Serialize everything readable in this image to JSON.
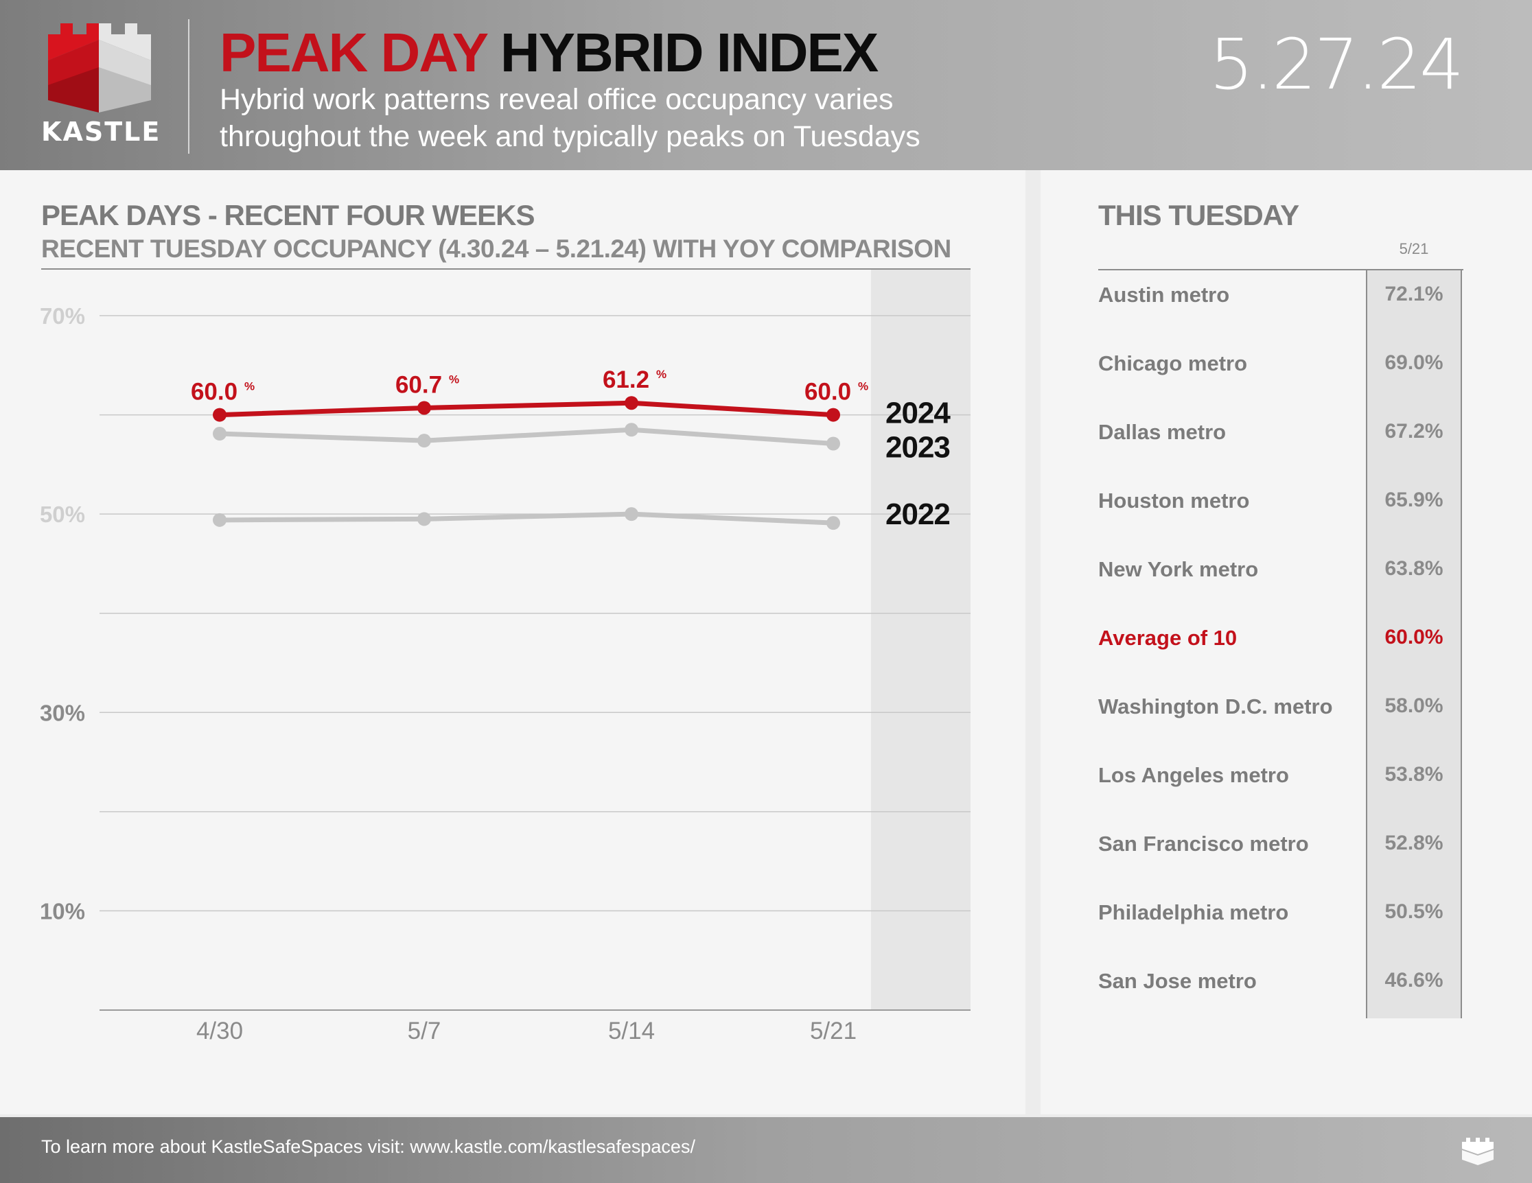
{
  "header": {
    "logo_text": "KASTLE",
    "title_red": "PEAK DAY",
    "title_black": "HYBRID INDEX",
    "subtitle_line1": "Hybrid work patterns reveal office occupancy varies",
    "subtitle_line2": "throughout the week and typically peaks on Tuesdays",
    "date": "5.27.24"
  },
  "left": {
    "title": "PEAK DAYS - RECENT FOUR WEEKS",
    "subtitle": "RECENT TUESDAY OCCUPANCY (4.30.24 – 5.21.24) WITH YOY COMPARISON"
  },
  "chart_data": {
    "type": "line",
    "title": "PEAK DAYS - RECENT FOUR WEEKS",
    "subtitle": "RECENT TUESDAY OCCUPANCY (4.30.24 – 5.21.24) WITH YOY COMPARISON",
    "categories": [
      "4/30",
      "5/7",
      "5/14",
      "5/21"
    ],
    "y_ticks": [
      {
        "value": 70,
        "label": "70%",
        "faded": true
      },
      {
        "value": 50,
        "label": "50%",
        "faded": true
      },
      {
        "value": 30,
        "label": "30%",
        "faded": false
      },
      {
        "value": 10,
        "label": "10%",
        "faded": false
      }
    ],
    "gridlines": [
      70,
      60,
      50,
      40,
      30,
      20,
      10,
      0
    ],
    "ylim": [
      0,
      70
    ],
    "series": [
      {
        "name": "2024",
        "values": [
          60.0,
          60.7,
          61.2,
          60.0
        ],
        "labels": [
          "60.0",
          "60.7",
          "61.2",
          "60.0"
        ],
        "color": "#c3111b"
      },
      {
        "name": "2023",
        "values": [
          58.1,
          57.4,
          58.5,
          57.1
        ],
        "color": "#c4c4c4"
      },
      {
        "name": "2022",
        "values": [
          49.4,
          49.5,
          50.0,
          49.1
        ],
        "color": "#c4c4c4"
      }
    ],
    "value_suffix": "%",
    "highlight_band": "last week"
  },
  "table": {
    "title": "THIS TUESDAY",
    "column_header": "5/21",
    "rows": [
      {
        "metro": "Austin metro",
        "value": "72.1%"
      },
      {
        "metro": "Chicago metro",
        "value": "69.0%"
      },
      {
        "metro": "Dallas metro",
        "value": "67.2%"
      },
      {
        "metro": "Houston metro",
        "value": "65.9%"
      },
      {
        "metro": "New York metro",
        "value": "63.8%"
      },
      {
        "metro": "Average of 10",
        "value": "60.0%"
      },
      {
        "metro": "Washington D.C. metro",
        "value": "58.0%"
      },
      {
        "metro": "Los Angeles metro",
        "value": "53.8%"
      },
      {
        "metro": "San Francisco metro",
        "value": "52.8%"
      },
      {
        "metro": "Philadelphia metro",
        "value": "50.5%"
      },
      {
        "metro": "San Jose metro",
        "value": "46.6%"
      }
    ]
  },
  "footer": {
    "text": "To learn more about KastleSafeSpaces visit: www.kastle.com/kastlesafespaces/"
  },
  "colors": {
    "brand_red": "#c3111b",
    "gray_line": "#c4c4c4"
  }
}
